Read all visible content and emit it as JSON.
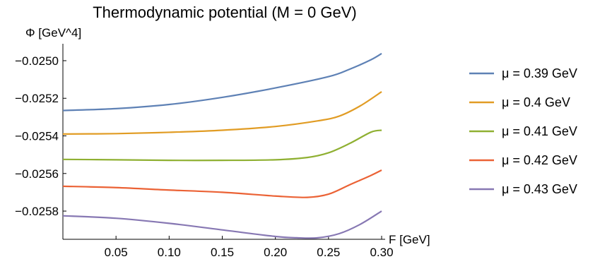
{
  "chart_data": {
    "type": "line",
    "title": "Thermodynamic potential (M = 0 GeV)",
    "xlabel": "F [GeV]",
    "ylabel": "Φ [GeV^4]",
    "xlim": [
      0,
      0.3
    ],
    "ylim": [
      -0.02595,
      -0.02491
    ],
    "x_ticks": [
      0.05,
      0.1,
      0.15,
      0.2,
      0.25,
      0.3
    ],
    "x_tick_labels": [
      "0.05",
      "0.10",
      "0.15",
      "0.20",
      "0.25",
      "0.30"
    ],
    "y_ticks": [
      -0.025,
      -0.0252,
      -0.0254,
      -0.0256,
      -0.0258
    ],
    "y_tick_labels": [
      "−0.0250",
      "−0.0252",
      "−0.0254",
      "−0.0256",
      "−0.0258"
    ],
    "legend_position": "right",
    "series": [
      {
        "name": "μ = 0.39 GeV",
        "color": "#5e81b5",
        "x": [
          0,
          0.05,
          0.1,
          0.15,
          0.2,
          0.25,
          0.27,
          0.29,
          0.3
        ],
        "y": [
          -0.025265,
          -0.025255,
          -0.025233,
          -0.025195,
          -0.025145,
          -0.025085,
          -0.025045,
          -0.024995,
          -0.024962
        ]
      },
      {
        "name": "μ = 0.4 GeV",
        "color": "#e19c24",
        "x": [
          0,
          0.05,
          0.1,
          0.15,
          0.2,
          0.24,
          0.26,
          0.28,
          0.3
        ],
        "y": [
          -0.02539,
          -0.025388,
          -0.025381,
          -0.02537,
          -0.02535,
          -0.02532,
          -0.025295,
          -0.02524,
          -0.025165
        ]
      },
      {
        "name": "μ = 0.41 GeV",
        "color": "#8fb032",
        "x": [
          0,
          0.05,
          0.1,
          0.15,
          0.2,
          0.23,
          0.25,
          0.27,
          0.29,
          0.3
        ],
        "y": [
          -0.025525,
          -0.025527,
          -0.02553,
          -0.02553,
          -0.025527,
          -0.025515,
          -0.02549,
          -0.02544,
          -0.02538,
          -0.02537
        ]
      },
      {
        "name": "μ = 0.42 GeV",
        "color": "#eb6235",
        "x": [
          0,
          0.05,
          0.1,
          0.15,
          0.2,
          0.23,
          0.25,
          0.27,
          0.29,
          0.3
        ],
        "y": [
          -0.025668,
          -0.025675,
          -0.025688,
          -0.0257,
          -0.02572,
          -0.025727,
          -0.02571,
          -0.02566,
          -0.02561,
          -0.025582
        ]
      },
      {
        "name": "μ = 0.43 GeV",
        "color": "#8778b3",
        "x": [
          0,
          0.05,
          0.1,
          0.15,
          0.2,
          0.22,
          0.24,
          0.26,
          0.28,
          0.3
        ],
        "y": [
          -0.025825,
          -0.025838,
          -0.025865,
          -0.0259,
          -0.025935,
          -0.025942,
          -0.025942,
          -0.02592,
          -0.02587,
          -0.0258
        ]
      }
    ]
  }
}
